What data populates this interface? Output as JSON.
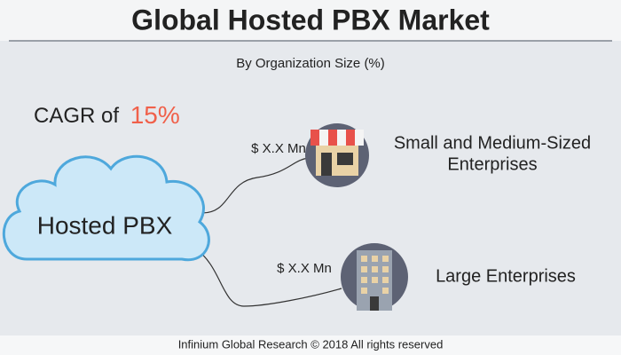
{
  "header": {
    "title": "Global Hosted PBX Market",
    "subtitle": "By Organization Size (%)"
  },
  "cagr": {
    "label": "CAGR of",
    "value": "15%"
  },
  "center": {
    "label": "Hosted PBX"
  },
  "segments": [
    {
      "lines": [
        "Small and Medium-Sized",
        "Enterprises"
      ],
      "value": "$ X.X Mn"
    },
    {
      "lines": [
        "Large Enterprises"
      ],
      "value": "$ X.X Mn"
    }
  ],
  "footer": "Infinium Global Research © 2018 All rights reserved"
}
